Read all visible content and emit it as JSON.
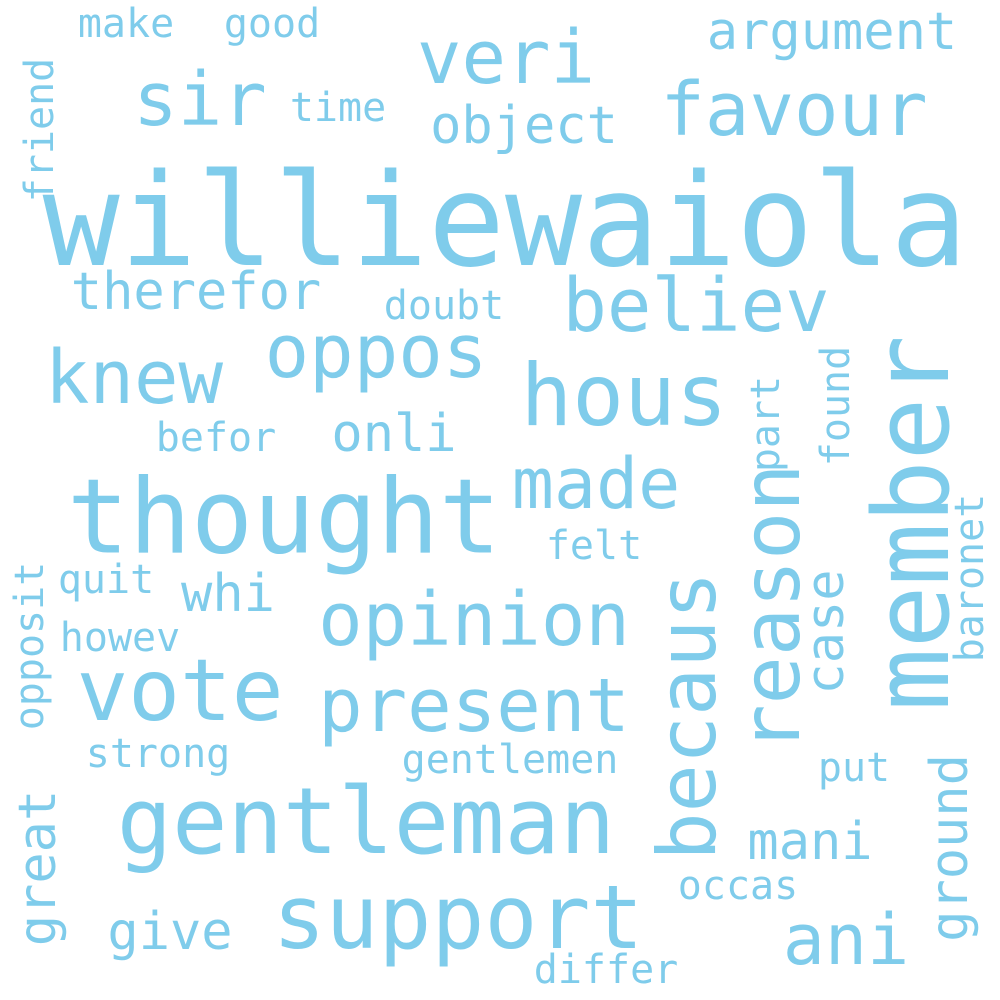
{
  "colors": {
    "background": "#ffffff",
    "word": "#7fcceb"
  },
  "words": {
    "williewaiola": "williewaiola",
    "thought": "thought",
    "member": "member",
    "gentleman": "gentleman",
    "support": "support",
    "vote": "vote",
    "hous": "hous",
    "becaus": "becaus",
    "reason": "reason",
    "opinion": "opinion",
    "present": "present",
    "favour": "favour",
    "veri": "veri",
    "sir": "sir",
    "knew": "knew",
    "believ": "believ",
    "oppos": "oppos",
    "made": "made",
    "ani": "ani",
    "argument": "argument",
    "therefor": "therefor",
    "object": "object",
    "ground": "ground",
    "mani": "mani",
    "case": "case",
    "onli": "onli",
    "whi": "whi",
    "give": "give",
    "great": "great",
    "opposit": "opposit",
    "gentlemen": "gentlemen",
    "strong": "strong",
    "befor": "befor",
    "felt": "felt",
    "found": "found",
    "part": "part",
    "baronet": "baronet",
    "put": "put",
    "occas": "occas",
    "differ": "differ",
    "doubt": "doubt",
    "time": "time",
    "make": "make",
    "good": "good",
    "friend": "friend",
    "quit": "quit",
    "howev": "howev"
  }
}
